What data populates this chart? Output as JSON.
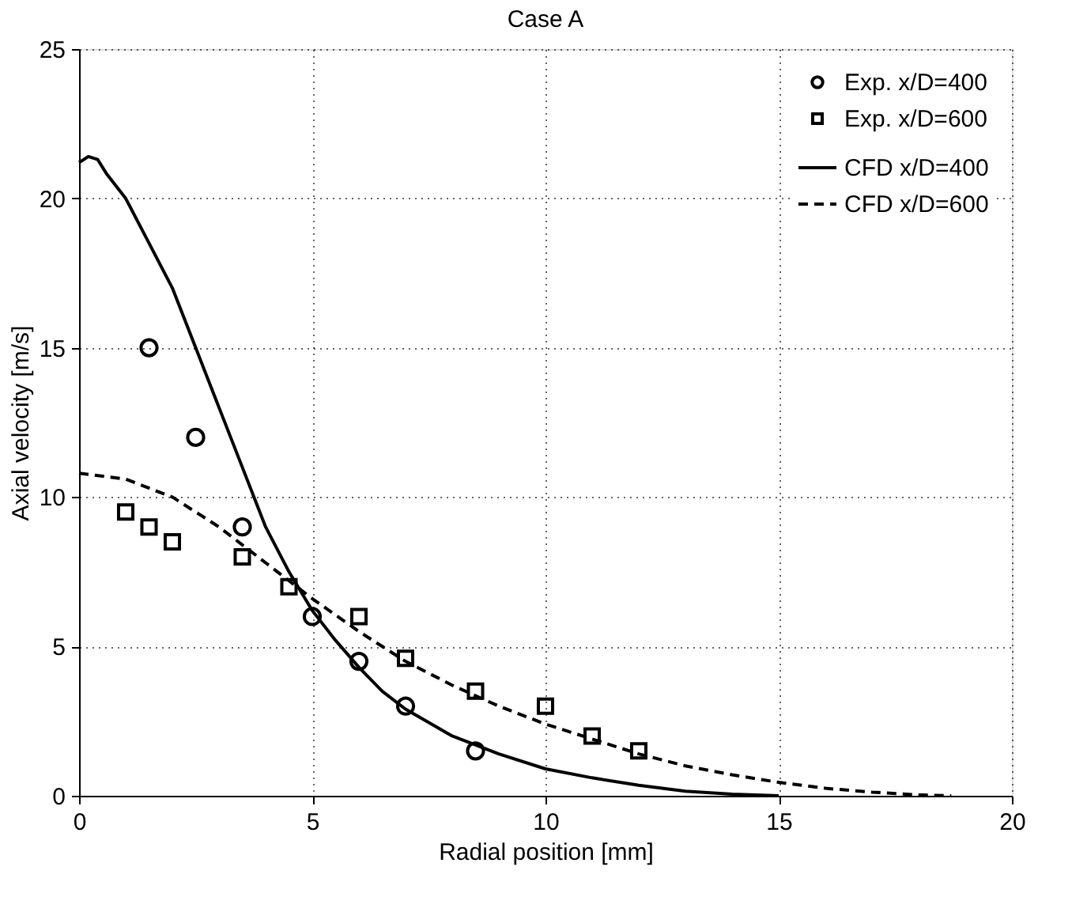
{
  "chart_data": {
    "type": "scatter",
    "title": "Case A",
    "xlabel": "Radial position [mm]",
    "ylabel": "Axial velocity [m/s]",
    "xlim": [
      0,
      20
    ],
    "ylim": [
      0,
      25
    ],
    "xticks": [
      0,
      5,
      10,
      15,
      20
    ],
    "yticks": [
      0,
      5,
      10,
      15,
      20,
      25
    ],
    "grid": true,
    "legend": "top right",
    "series": [
      {
        "name": "Exp. x/D=400",
        "color": "#000000",
        "marker": "circle",
        "x": [
          1.5,
          2.5,
          3.5,
          5,
          6,
          7,
          8.5
        ],
        "values": [
          15,
          12,
          9,
          6,
          4.5,
          3,
          1.5
        ]
      },
      {
        "name": "Exp. x/D=600",
        "color": "#000000",
        "marker": "square",
        "x": [
          1,
          1.5,
          2,
          3.5,
          4.5,
          6,
          7,
          8.5,
          10,
          11,
          12
        ],
        "values": [
          9.5,
          9,
          8.5,
          8,
          7,
          6,
          4.6,
          3.5,
          3,
          2,
          1.5
        ]
      },
      {
        "name": "CFD x/D=400",
        "color": "#000000",
        "type": "line",
        "line_style": "solid",
        "x": [
          0,
          0.2,
          0.4,
          0.6,
          1,
          1.5,
          2,
          2.5,
          3,
          3.5,
          4,
          4.5,
          5,
          5.5,
          6,
          6.5,
          7,
          8,
          9,
          10,
          11,
          12,
          13,
          14,
          15
        ],
        "values": [
          21.2,
          21.4,
          21.3,
          20.8,
          20,
          18.5,
          17,
          15,
          13,
          11,
          9,
          7.5,
          6.2,
          5.2,
          4.3,
          3.5,
          2.9,
          2,
          1.4,
          0.9,
          0.6,
          0.35,
          0.15,
          0.05,
          0
        ]
      },
      {
        "name": "CFD x/D=600",
        "color": "#000000",
        "type": "line",
        "line_style": "dashed",
        "x": [
          0,
          1,
          2,
          3,
          4,
          5,
          6,
          7,
          8,
          9,
          10,
          11,
          12,
          13,
          14,
          15,
          16,
          17,
          18,
          18.7
        ],
        "values": [
          10.8,
          10.6,
          10,
          9,
          7.8,
          6.6,
          5.5,
          4.5,
          3.7,
          3.0,
          2.4,
          1.9,
          1.4,
          1.0,
          0.7,
          0.45,
          0.25,
          0.12,
          0.03,
          0
        ]
      }
    ]
  }
}
